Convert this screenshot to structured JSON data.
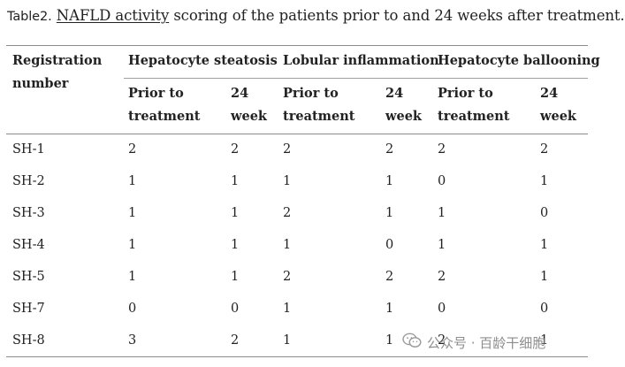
{
  "caption": {
    "label": "Table2.",
    "link_text": "NAFLD activity",
    "rest": " scoring of the patients prior to and 24 weeks after treatment."
  },
  "table": {
    "headers": {
      "registration_line1": "Registration",
      "registration_line2": "number",
      "group1": "Hepatocyte steatosis",
      "group2": "Lobular inflammation",
      "group3": "Hepatocyte ballooning",
      "prior_line1": "Prior to",
      "prior_line2": "treatment",
      "week_line1": "24",
      "week_line2": "week"
    },
    "rows": [
      [
        "SH-1",
        "2",
        "2",
        "2",
        "2",
        "2",
        "2"
      ],
      [
        "SH-2",
        "1",
        "1",
        "1",
        "1",
        "0",
        "1"
      ],
      [
        "SH-3",
        "1",
        "1",
        "2",
        "1",
        "1",
        "0"
      ],
      [
        "SH-4",
        "1",
        "1",
        "1",
        "0",
        "1",
        "1"
      ],
      [
        "SH-5",
        "1",
        "1",
        "2",
        "2",
        "2",
        "1"
      ],
      [
        "SH-7",
        "0",
        "0",
        "1",
        "1",
        "0",
        "0"
      ],
      [
        "SH-8",
        "3",
        "2",
        "1",
        "1",
        "2",
        "1"
      ]
    ]
  },
  "watermark": {
    "icon": "wechat-icon",
    "text": "公众号 · 百龄干细胞"
  }
}
